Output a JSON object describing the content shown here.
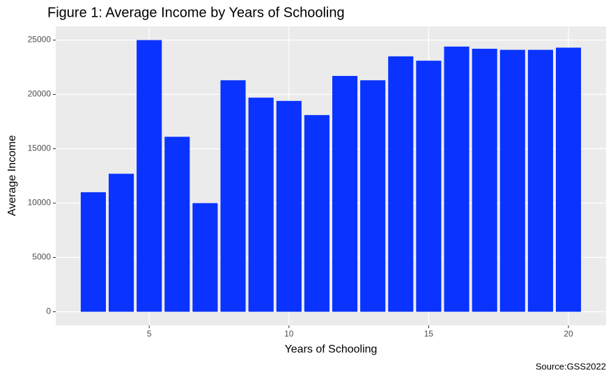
{
  "chart_data": {
    "type": "bar",
    "title": "Figure 1: Average Income by Years of Schooling",
    "x_label": "Years of Schooling",
    "y_label": "Average Income",
    "caption": "Source:GSS2022",
    "x": [
      3,
      4,
      5,
      6,
      7,
      8,
      9,
      10,
      11,
      12,
      13,
      14,
      15,
      16,
      17,
      18,
      19,
      20
    ],
    "values": [
      11000,
      12700,
      25000,
      16100,
      10000,
      21300,
      19700,
      19400,
      18100,
      21700,
      21300,
      23500,
      23100,
      24400,
      24200,
      24100,
      24100,
      24300
    ],
    "color": "#0a33ff",
    "xlim": [
      1.655,
      21.345
    ],
    "xticks": [
      5,
      10,
      15,
      20
    ],
    "ylim": [
      -1250,
      26250
    ],
    "yticks": [
      0,
      5000,
      10000,
      15000,
      20000,
      25000
    ],
    "grid": true
  }
}
